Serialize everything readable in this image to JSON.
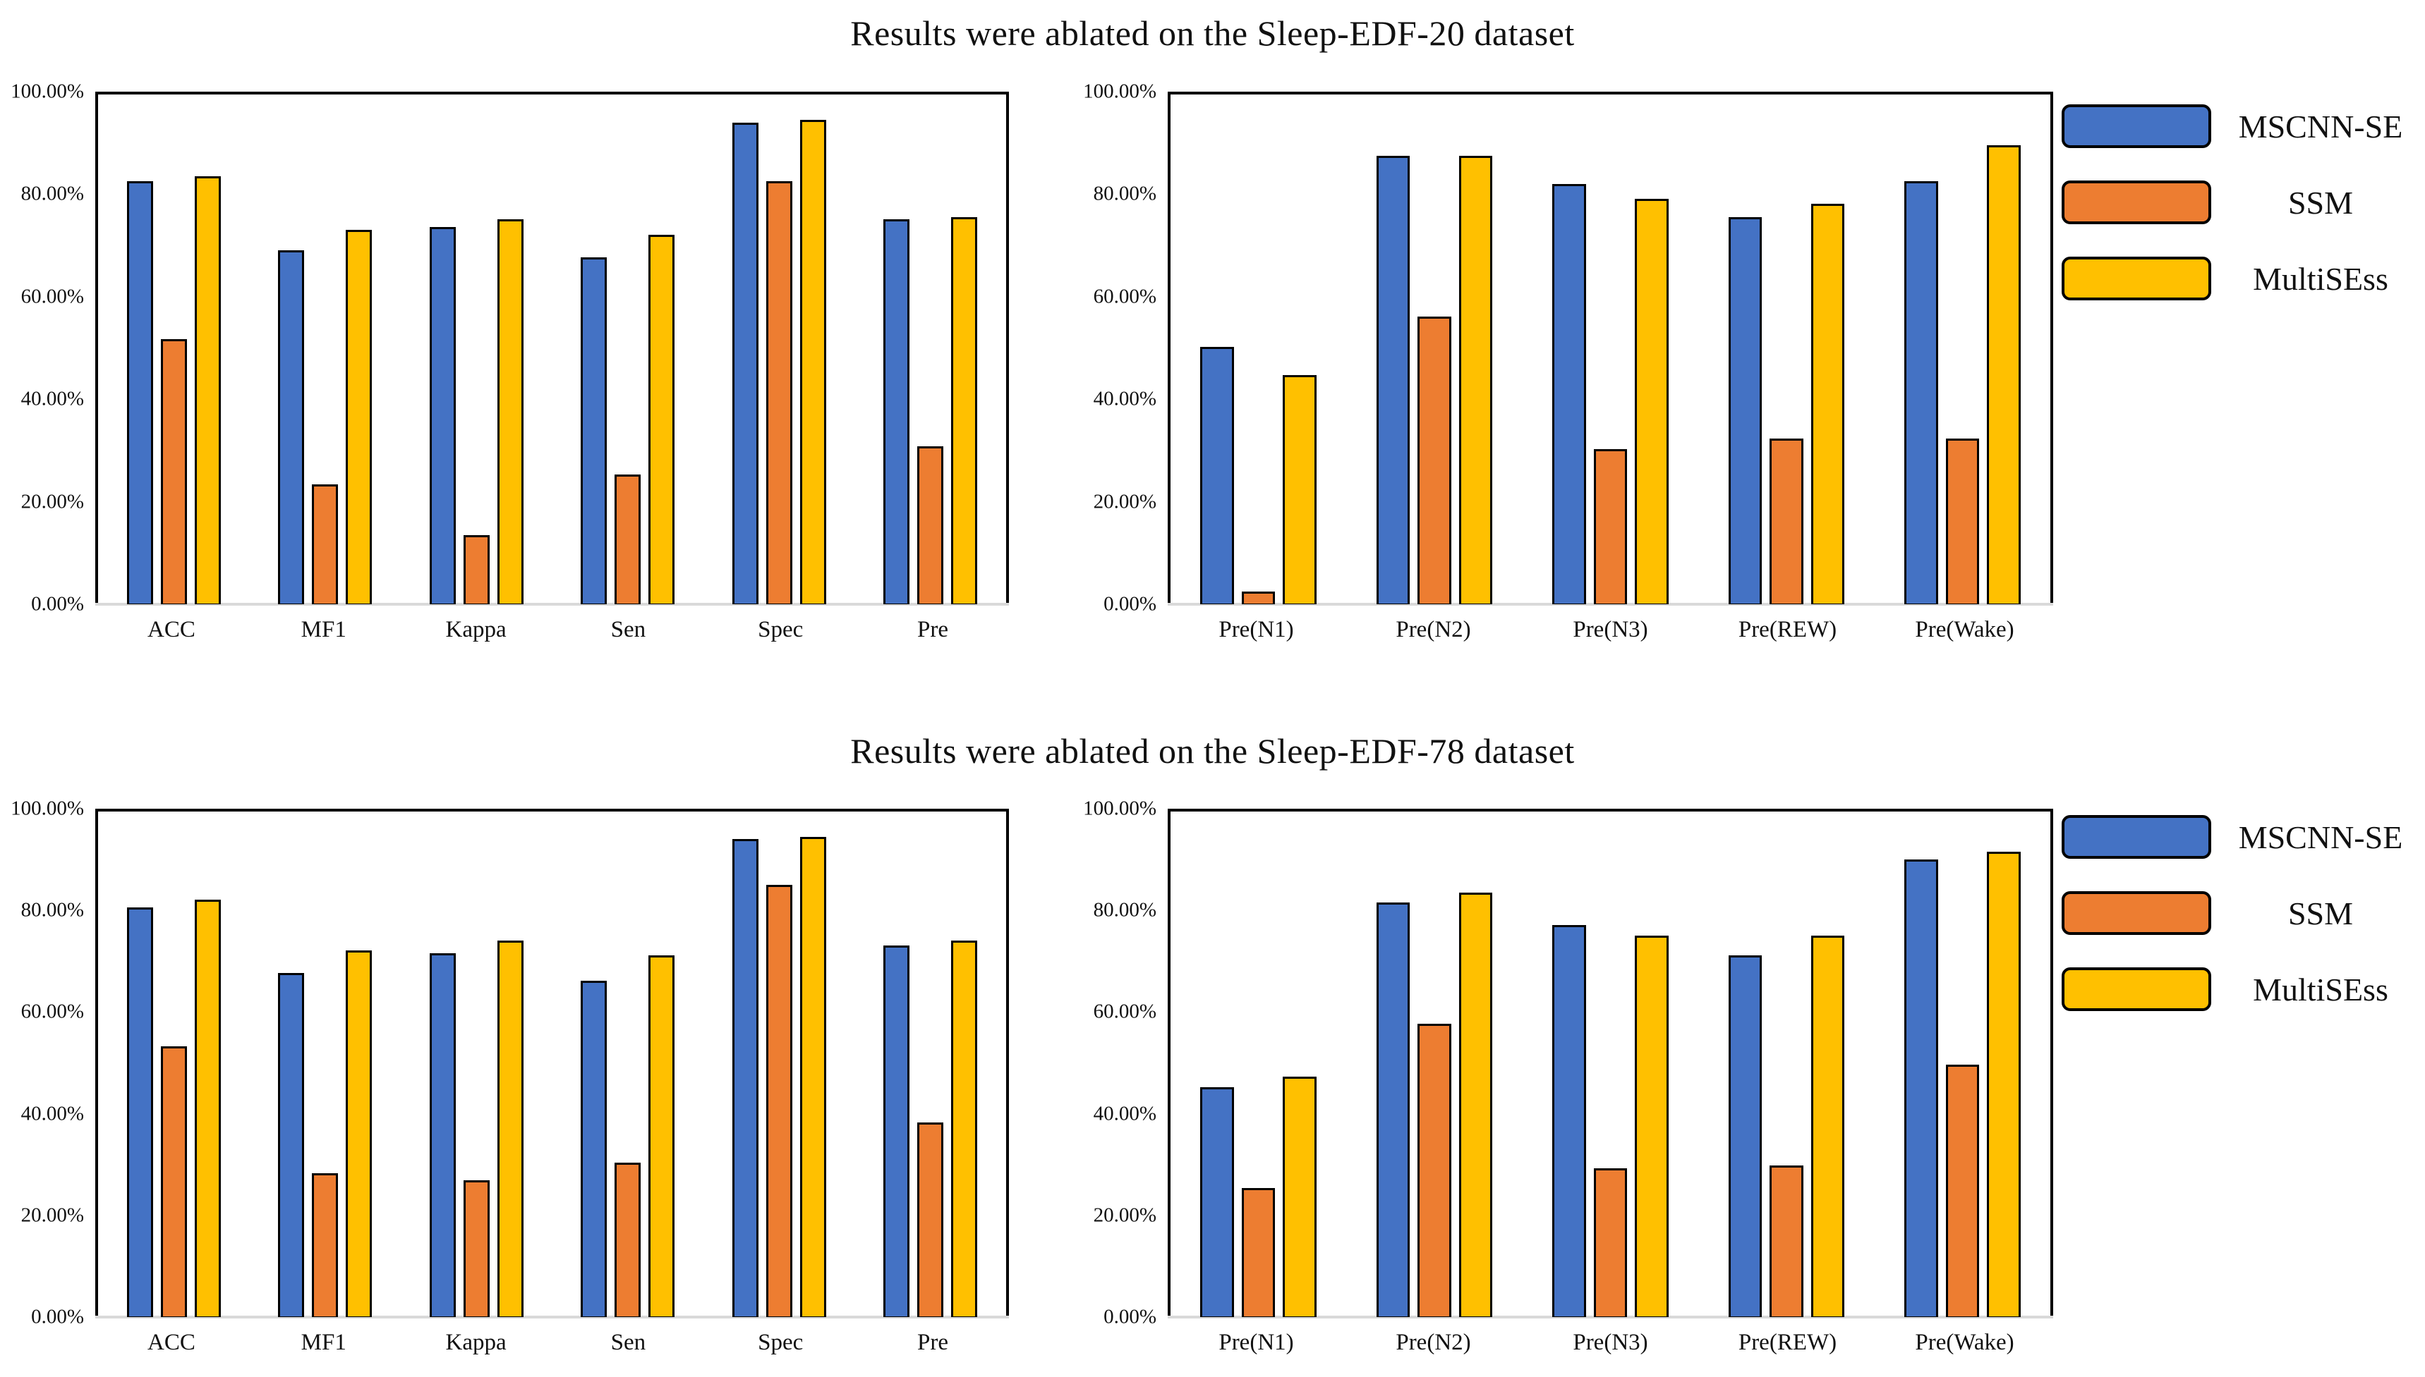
{
  "figure": {
    "background": "#ffffff",
    "sections": [
      {
        "title": "Results were ablated on the Sleep-EDF-20 dataset"
      },
      {
        "title": "Results were ablated on the Sleep-EDF-78 dataset"
      }
    ]
  },
  "legend": {
    "items": [
      {
        "label": "MSCNN-SE",
        "color": "#4472C4"
      },
      {
        "label": "SSM",
        "color": "#ED7D31"
      },
      {
        "label": "MultiSEss",
        "color": "#FFC000"
      }
    ]
  },
  "colors": {
    "bar_blue": "#4472C4",
    "bar_orange": "#ED7D31",
    "bar_yellow": "#FFC000",
    "bar_border": "#000000",
    "axis_baseline": "#d9d9d9",
    "plot_border": "#000000"
  },
  "chart_data": [
    {
      "type": "bar",
      "panel": "top-left",
      "title": "Results were ablated on the Sleep-EDF-20 dataset",
      "xlabel": "",
      "ylabel": "",
      "ylim": [
        0,
        100
      ],
      "grid": false,
      "y_tick_labels": [
        "100.00%",
        "80.00%",
        "60.00%",
        "40.00%",
        "20.00%",
        "0.00%"
      ],
      "categories": [
        "ACC",
        "MF1",
        "Kappa",
        "Sen",
        "Spec",
        "Pre"
      ],
      "series": [
        {
          "name": "MSCNN-SE",
          "color": "#4472C4",
          "values": [
            83.0,
            69.5,
            74.0,
            68.0,
            94.5,
            75.5
          ]
        },
        {
          "name": "SSM",
          "color": "#ED7D31",
          "values": [
            52.0,
            23.5,
            13.5,
            25.5,
            83.0,
            31.0
          ]
        },
        {
          "name": "MultiSEss",
          "color": "#FFC000",
          "values": [
            84.0,
            73.5,
            75.5,
            72.5,
            95.0,
            76.0
          ]
        }
      ]
    },
    {
      "type": "bar",
      "panel": "top-right",
      "title": "Results were ablated on the Sleep-EDF-20 dataset",
      "xlabel": "",
      "ylabel": "",
      "ylim": [
        0,
        100
      ],
      "grid": false,
      "y_tick_labels": [
        "100.00%",
        "80.00%",
        "60.00%",
        "40.00%",
        "20.00%",
        "0.00%"
      ],
      "categories": [
        "Pre(N1)",
        "Pre(N2)",
        "Pre(N3)",
        "Pre(REW)",
        "Pre(Wake)"
      ],
      "series": [
        {
          "name": "MSCNN-SE",
          "color": "#4472C4",
          "values": [
            50.5,
            88.0,
            82.5,
            76.0,
            83.0
          ]
        },
        {
          "name": "SSM",
          "color": "#ED7D31",
          "values": [
            2.5,
            56.5,
            30.5,
            32.5,
            32.5
          ]
        },
        {
          "name": "MultiSEss",
          "color": "#FFC000",
          "values": [
            45.0,
            88.0,
            79.5,
            78.5,
            90.0
          ]
        }
      ]
    },
    {
      "type": "bar",
      "panel": "bottom-left",
      "title": "Results were ablated on the Sleep-EDF-78 dataset",
      "xlabel": "",
      "ylabel": "",
      "ylim": [
        0,
        100
      ],
      "grid": false,
      "y_tick_labels": [
        "100.00%",
        "80.00%",
        "60.00%",
        "40.00%",
        "20.00%",
        "0.00%"
      ],
      "categories": [
        "ACC",
        "MF1",
        "Kappa",
        "Sen",
        "Spec",
        "Pre"
      ],
      "series": [
        {
          "name": "MSCNN-SE",
          "color": "#4472C4",
          "values": [
            81.0,
            68.0,
            72.0,
            66.5,
            94.5,
            73.5
          ]
        },
        {
          "name": "SSM",
          "color": "#ED7D31",
          "values": [
            53.5,
            28.5,
            27.0,
            30.5,
            85.5,
            38.5
          ]
        },
        {
          "name": "MultiSEss",
          "color": "#FFC000",
          "values": [
            82.5,
            72.5,
            74.5,
            71.5,
            95.0,
            74.5
          ]
        }
      ]
    },
    {
      "type": "bar",
      "panel": "bottom-right",
      "title": "Results were ablated on the Sleep-EDF-78 dataset",
      "xlabel": "",
      "ylabel": "",
      "ylim": [
        0,
        100
      ],
      "grid": false,
      "y_tick_labels": [
        "100.00%",
        "80.00%",
        "60.00%",
        "40.00%",
        "20.00%",
        "0.00%"
      ],
      "categories": [
        "Pre(N1)",
        "Pre(N2)",
        "Pre(N3)",
        "Pre(REW)",
        "Pre(Wake)"
      ],
      "series": [
        {
          "name": "MSCNN-SE",
          "color": "#4472C4",
          "values": [
            45.5,
            82.0,
            77.5,
            71.5,
            90.5
          ]
        },
        {
          "name": "SSM",
          "color": "#ED7D31",
          "values": [
            25.5,
            58.0,
            29.5,
            30.0,
            50.0
          ]
        },
        {
          "name": "MultiSEss",
          "color": "#FFC000",
          "values": [
            47.5,
            84.0,
            75.5,
            75.5,
            92.0
          ]
        }
      ]
    }
  ]
}
